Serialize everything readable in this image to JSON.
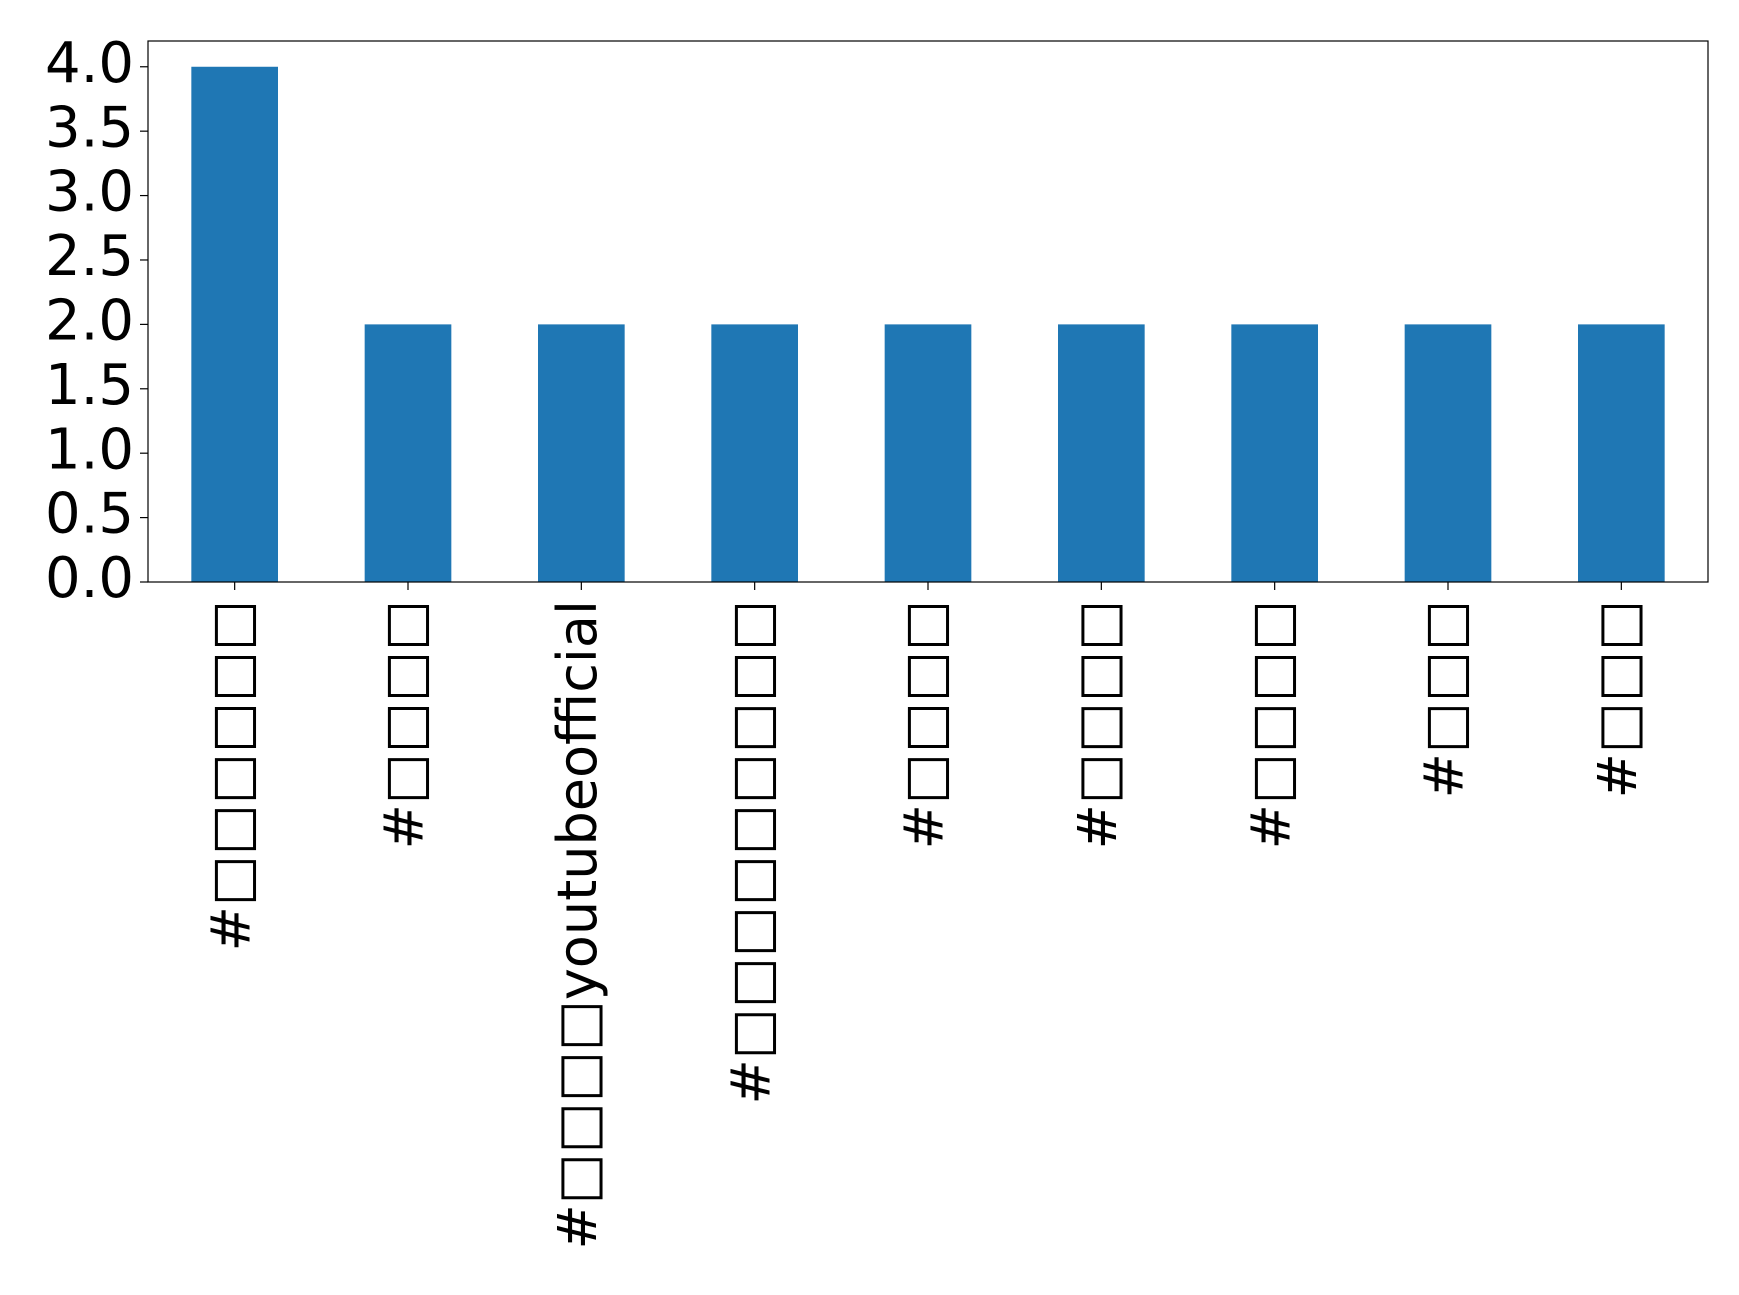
{
  "chart_data": {
    "type": "bar",
    "categories": [
      "#□□□□□□",
      "#□□□□",
      "#□□□□youtubeofficial",
      "#□□□□□□□□□",
      "#□□□□",
      "#□□□□",
      "#□□□□",
      "#□□□",
      "#□□□"
    ],
    "values": [
      4,
      2,
      2,
      2,
      2,
      2,
      2,
      2,
      2
    ],
    "color": "#1f77b4",
    "ylim": [
      0,
      4.2
    ],
    "yticks": [
      {
        "value": 0,
        "label": "0.0"
      },
      {
        "value": 0.5,
        "label": "0.5"
      },
      {
        "value": 1,
        "label": "1.0"
      },
      {
        "value": 1.5,
        "label": "1.5"
      },
      {
        "value": 2,
        "label": "2.0"
      },
      {
        "value": 2.5,
        "label": "2.5"
      },
      {
        "value": 3,
        "label": "3.0"
      },
      {
        "value": 3.5,
        "label": "3.5"
      },
      {
        "value": 4,
        "label": "4.0"
      }
    ],
    "grid": false
  }
}
